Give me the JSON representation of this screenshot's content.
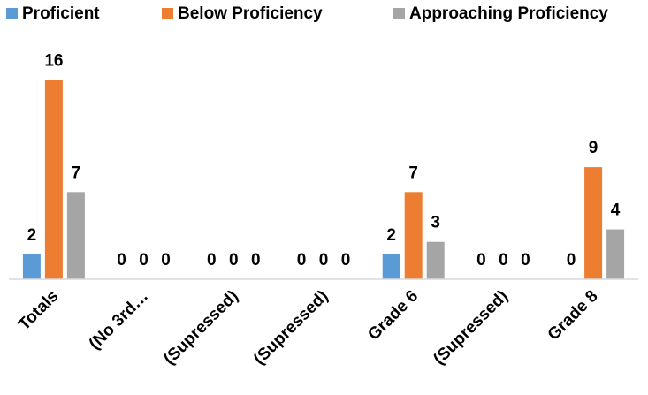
{
  "chart_data": {
    "type": "bar",
    "title": "",
    "xlabel": "",
    "ylabel": "",
    "ylim": [
      0,
      17
    ],
    "grid": false,
    "legend_position": "top",
    "categories": [
      "Totals",
      "(No 3rd…",
      "(Supressed)",
      "(Supressed)",
      "Grade 6",
      "(Supressed)",
      "Grade 8"
    ],
    "series": [
      {
        "name": "Proficient",
        "color": "#5B9BD5",
        "values": [
          2,
          0,
          0,
          0,
          2,
          0,
          0
        ],
        "labels": [
          "2",
          "0",
          "0",
          "0",
          "2",
          "0",
          "0"
        ]
      },
      {
        "name": "Below Proficiency",
        "color": "#ED7D31",
        "values": [
          16,
          0,
          0,
          0,
          7,
          0,
          9
        ],
        "labels": [
          "16",
          "0",
          "0",
          "0",
          "7",
          "0",
          "9"
        ]
      },
      {
        "name": "Approaching Proficiency",
        "color": "#A5A5A5",
        "values": [
          7,
          0,
          0,
          0,
          3,
          0,
          4
        ],
        "labels": [
          "7",
          "0",
          "0",
          "0",
          "3",
          "0",
          "4"
        ]
      }
    ]
  }
}
